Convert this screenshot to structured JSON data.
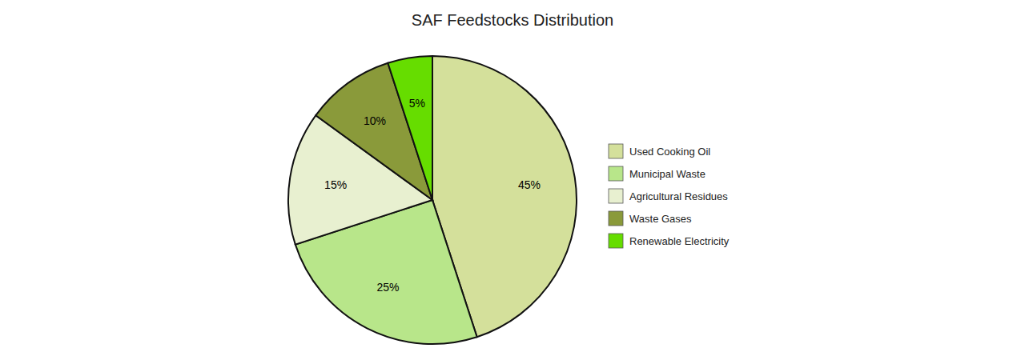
{
  "chart_data": {
    "type": "pie",
    "title": "SAF Feedstocks Distribution",
    "categories": [
      "Used Cooking Oil",
      "Municipal Waste",
      "Agricultural Residues",
      "Waste Gases",
      "Renewable Electricity"
    ],
    "values": [
      45,
      25,
      15,
      10,
      5
    ],
    "value_labels": [
      "45%",
      "25%",
      "15%",
      "10%",
      "5%"
    ],
    "colors": [
      "#d4e09b",
      "#b8e68a",
      "#e8f0d0",
      "#8a9a3a",
      "#66dd00"
    ],
    "data_labels": true,
    "legend": "right"
  }
}
